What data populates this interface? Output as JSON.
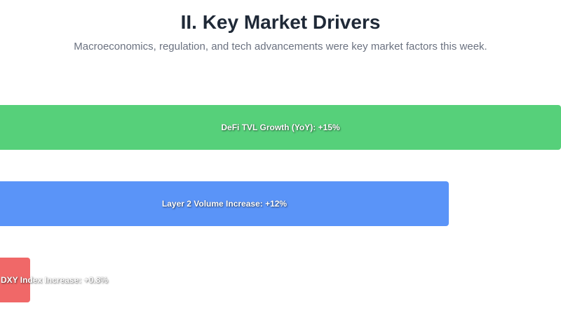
{
  "header": {
    "title": "II. Key Market Drivers",
    "subtitle": "Macroeconomics, regulation, and tech advancements were key market factors this week."
  },
  "chart_data": {
    "type": "bar",
    "orientation": "horizontal",
    "categories": [
      "DeFi TVL Growth (YoY): +15%",
      "Layer 2 Volume Increase: +12%",
      "DXY Index Increase: +0.8%"
    ],
    "values": [
      15,
      12,
      0.8
    ],
    "colors": [
      "#56d07a",
      "#5a94f8",
      "#f06868"
    ],
    "xlim": [
      0,
      15
    ],
    "grid": false,
    "legend": "none"
  }
}
